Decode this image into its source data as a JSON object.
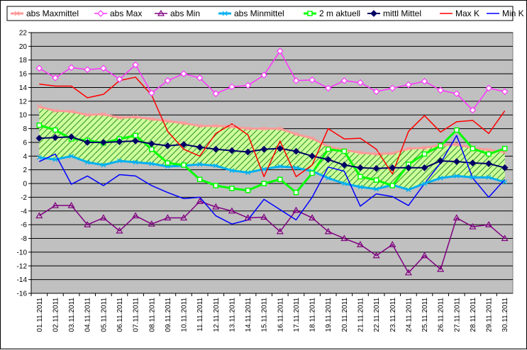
{
  "chart_data": {
    "type": "line",
    "title": "",
    "xlabel": "",
    "ylabel": "",
    "ylim": [
      -16,
      22
    ],
    "ytick_step": 2,
    "grid": true,
    "legend_position": "top",
    "plot_background": "#c0c0c0",
    "categories": [
      "01.11.2011",
      "02.11.2011",
      "03.11.2011",
      "04.11.2011",
      "05.11.2011",
      "06.11.2011",
      "07.11.2011",
      "08.11.2011",
      "09.11.2011",
      "10.11.2011",
      "11.11.2011",
      "12.11.2011",
      "13.11.2011",
      "14.11.2011",
      "15.11.2011",
      "16.11.2011",
      "17.11.2011",
      "18.11.2011",
      "19.11.2011",
      "20.11.2011",
      "21.11.2011",
      "22.11.2011",
      "23.11.2011",
      "24.11.2011",
      "25.11.2011",
      "26.11.2011",
      "27.11.2011",
      "28.11.2011",
      "29.11.2011",
      "30.11.2011"
    ],
    "band": {
      "upper_series": "abs Maxmittel",
      "lower_series": "abs Minmittel",
      "fill_color": "#ccff99",
      "hatch_color": "#2e8b2e"
    },
    "series": [
      {
        "name": "abs Maxmittel",
        "color": "#ff9999",
        "marker": "cross",
        "width": 3,
        "values": [
          11.2,
          10.6,
          10.5,
          10.0,
          10.1,
          9.6,
          9.7,
          9.4,
          9.1,
          8.8,
          8.4,
          8.4,
          8.3,
          8.0,
          8.0,
          8.0,
          7.2,
          6.6,
          5.4,
          4.9,
          4.5,
          4.3,
          4.4,
          5.1,
          5.2,
          5.6,
          5.7,
          5.2,
          4.9,
          4.6
        ]
      },
      {
        "name": "abs Max",
        "color": "#ff33ff",
        "marker": "diamond-open",
        "width": 1.5,
        "values": [
          16.8,
          15.4,
          16.9,
          16.6,
          16.8,
          15.2,
          17.3,
          13.2,
          15.0,
          16.0,
          15.4,
          13.1,
          14.1,
          14.3,
          15.8,
          19.3,
          15.0,
          15.1,
          13.9,
          15.0,
          14.7,
          13.4,
          13.9,
          14.4,
          14.9,
          13.6,
          13.1,
          10.7,
          13.9,
          13.4
        ]
      },
      {
        "name": "abs Min",
        "color": "#800080",
        "marker": "triangle-open",
        "width": 1.5,
        "values": [
          -4.7,
          -3.2,
          -3.2,
          -6.0,
          -5.0,
          -6.9,
          -4.7,
          -5.9,
          -5.0,
          -5.0,
          -2.6,
          -3.4,
          -4.0,
          -5.0,
          -4.9,
          -7.0,
          -3.9,
          -5.0,
          -7.0,
          -8.0,
          -8.9,
          -10.5,
          -8.9,
          -13.0,
          -10.5,
          -12.5,
          -5.0,
          -6.3,
          -6.0,
          -8.0
        ]
      },
      {
        "name": "abs Minmittel",
        "color": "#00b0f0",
        "marker": "cross",
        "width": 3,
        "values": [
          3.8,
          3.5,
          4.0,
          3.1,
          2.7,
          3.3,
          3.1,
          2.9,
          2.5,
          2.6,
          2.8,
          2.6,
          1.9,
          1.6,
          2.1,
          2.5,
          2.3,
          1.8,
          0.8,
          0.0,
          -0.5,
          -0.8,
          -0.2,
          -0.9,
          0.0,
          0.8,
          1.1,
          0.9,
          0.9,
          0.2
        ]
      },
      {
        "name": "2 m aktuell",
        "color": "#00ff00",
        "marker": "square-open",
        "width": 3,
        "values": [
          8.5,
          7.8,
          6.5,
          6.3,
          5.9,
          6.5,
          7.0,
          5.0,
          3.0,
          2.7,
          0.6,
          -0.3,
          -0.7,
          -1.0,
          0.0,
          0.6,
          -1.3,
          1.5,
          5.0,
          4.7,
          1.0,
          0.5,
          -0.3,
          2.8,
          4.3,
          5.5,
          7.8,
          5.1,
          4.3,
          5.1
        ]
      },
      {
        "name": "mittl Mittel",
        "color": "#000066",
        "marker": "diamond-filled",
        "width": 2,
        "values": [
          6.6,
          6.7,
          6.8,
          6.0,
          6.0,
          6.1,
          6.2,
          5.8,
          5.5,
          5.7,
          5.3,
          5.0,
          4.8,
          4.6,
          5.0,
          5.1,
          4.7,
          4.0,
          3.5,
          2.7,
          2.3,
          2.2,
          2.3,
          2.3,
          2.3,
          3.3,
          3.2,
          3.0,
          2.9,
          2.3
        ]
      },
      {
        "name": "Max K",
        "color": "#ff0000",
        "marker": "none",
        "width": 1.5,
        "values": [
          14.5,
          14.2,
          14.2,
          12.5,
          13.0,
          15.0,
          15.5,
          12.9,
          7.6,
          5.0,
          4.0,
          7.3,
          8.7,
          7.1,
          1.0,
          6.2,
          1.0,
          2.7,
          8.0,
          6.5,
          6.6,
          5.0,
          1.4,
          7.6,
          9.9,
          7.5,
          9.0,
          9.2,
          7.3,
          10.6
        ]
      },
      {
        "name": "Min K",
        "color": "#0000ff",
        "marker": "none",
        "width": 1.5,
        "values": [
          3.2,
          4.3,
          -0.1,
          1.1,
          -0.3,
          1.3,
          1.1,
          -0.3,
          -1.3,
          -2.2,
          -2.0,
          -4.7,
          -5.9,
          -5.3,
          -2.3,
          -3.8,
          -5.3,
          -2.0,
          2.4,
          1.8,
          -3.3,
          -1.5,
          -1.9,
          -3.2,
          0.0,
          3.0,
          7.0,
          0.8,
          -2.0,
          0.6
        ]
      }
    ]
  }
}
